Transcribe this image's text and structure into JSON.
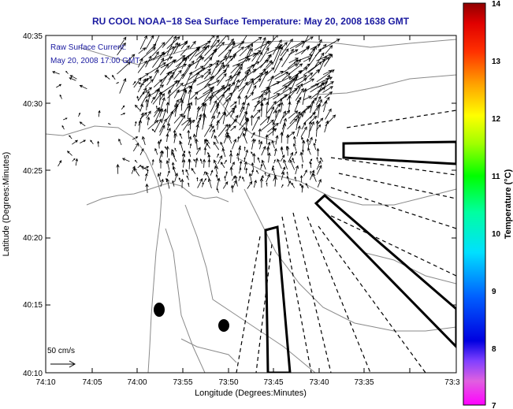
{
  "map": {
    "title": "RU COOL  NOAA−18  Sea Surface Temperature:  May 20, 2008 1638 GMT",
    "legend_line1": "Raw Surface Current:",
    "legend_line2": "May 20, 2008 17:00 GMT",
    "scale_label": "50 cm/s",
    "xlabel": "Longitude (Degrees:Minutes)",
    "ylabel": "Latitude (Degrees:Minutes)",
    "x_ticks": [
      "74:10",
      "74:05",
      "74:00",
      "73:55",
      "73:50",
      "73:45",
      "73:40",
      "73:35",
      "73:3"
    ],
    "y_ticks": [
      "40:35",
      "40:30",
      "40:25",
      "40:20",
      "40:15",
      "40:10"
    ],
    "colors": {
      "title": "#1a1aa0",
      "land_line": "#888888",
      "vector": "#000000"
    }
  },
  "colorbar": {
    "label": "Temperature (°C)",
    "ticks": [
      "14",
      "13",
      "12",
      "11",
      "10",
      "9",
      "8",
      "7"
    ],
    "range": [
      7,
      14
    ]
  }
}
